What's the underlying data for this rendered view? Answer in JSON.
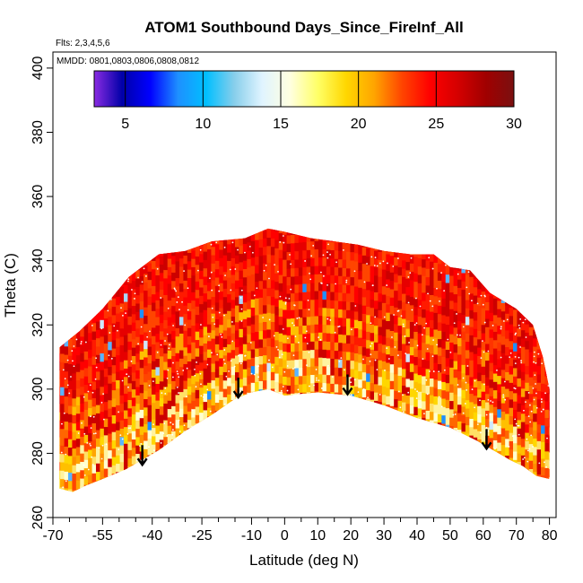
{
  "chart_data": {
    "type": "heatmap",
    "title": "ATOM1 Southbound Days_Since_FireInf_All",
    "subtitle_flights": "Flts: 2,3,4,5,6",
    "subtitle_dates": "MMDD: 0801,0803,0806,0808,0812",
    "xlabel": "Latitude (deg N)",
    "ylabel": "Theta (C)",
    "xlim": [
      -70,
      82
    ],
    "ylim": [
      260,
      405
    ],
    "x_ticks": [
      -70,
      -55,
      -40,
      -25,
      -10,
      0,
      10,
      20,
      30,
      40,
      50,
      60,
      70,
      80
    ],
    "x_tick_labels": [
      "-70",
      "-55",
      "-40",
      "-25",
      "-10",
      "0",
      "10",
      "20",
      "30",
      "40",
      "50",
      "60",
      "70",
      "80"
    ],
    "x_minor_ticks": [
      -65,
      -60,
      -50,
      -45,
      -35,
      -30,
      -20,
      -15,
      -5,
      5,
      15,
      25,
      35,
      45,
      55,
      65,
      75
    ],
    "y_ticks": [
      260,
      280,
      300,
      320,
      340,
      360,
      380,
      400
    ],
    "y_tick_labels": [
      "260",
      "280",
      "300",
      "320",
      "340",
      "360",
      "380",
      "400"
    ],
    "colorbar": {
      "range": [
        3,
        30
      ],
      "ticks": [
        5,
        10,
        15,
        20,
        25,
        30
      ],
      "tick_labels": [
        "5",
        "10",
        "15",
        "20",
        "25",
        "30"
      ],
      "colors": [
        "#8a2be2",
        "#0000a8",
        "#0000ff",
        "#1e90ff",
        "#00bfff",
        "#87ceeb",
        "#e0f4ff",
        "#ffffe0",
        "#ffff66",
        "#ffd700",
        "#ffa500",
        "#ff4500",
        "#ff0000",
        "#d40000",
        "#a00000",
        "#7a1010"
      ]
    },
    "top_boundary": [
      [
        -68,
        313
      ],
      [
        -62,
        318
      ],
      [
        -55,
        325
      ],
      [
        -47,
        335
      ],
      [
        -38,
        342
      ],
      [
        -30,
        343
      ],
      [
        -22,
        346
      ],
      [
        -12,
        347
      ],
      [
        -5,
        350
      ],
      [
        0,
        349
      ],
      [
        8,
        347
      ],
      [
        15,
        346
      ],
      [
        22,
        345
      ],
      [
        30,
        343
      ],
      [
        38,
        342
      ],
      [
        45,
        342
      ],
      [
        50,
        338
      ],
      [
        56,
        337
      ],
      [
        62,
        330
      ],
      [
        70,
        325
      ],
      [
        75,
        320
      ],
      [
        78,
        310
      ],
      [
        80,
        300
      ]
    ],
    "bottom_boundary": [
      [
        -68,
        269
      ],
      [
        -64,
        268
      ],
      [
        -60,
        270
      ],
      [
        -55,
        272
      ],
      [
        -48,
        275
      ],
      [
        -43,
        278
      ],
      [
        -38,
        281
      ],
      [
        -30,
        287
      ],
      [
        -22,
        292
      ],
      [
        -15,
        297
      ],
      [
        -10,
        299
      ],
      [
        -5,
        300
      ],
      [
        0,
        298
      ],
      [
        10,
        299
      ],
      [
        20,
        298
      ],
      [
        30,
        295
      ],
      [
        40,
        291
      ],
      [
        50,
        288
      ],
      [
        58,
        284
      ],
      [
        63,
        281
      ],
      [
        68,
        278
      ],
      [
        72,
        276
      ],
      [
        76,
        273
      ],
      [
        80,
        272
      ]
    ],
    "arrow_latitudes": [
      -43,
      -14,
      19,
      61
    ],
    "arrow_thetas": [
      282,
      303,
      304,
      287
    ]
  }
}
